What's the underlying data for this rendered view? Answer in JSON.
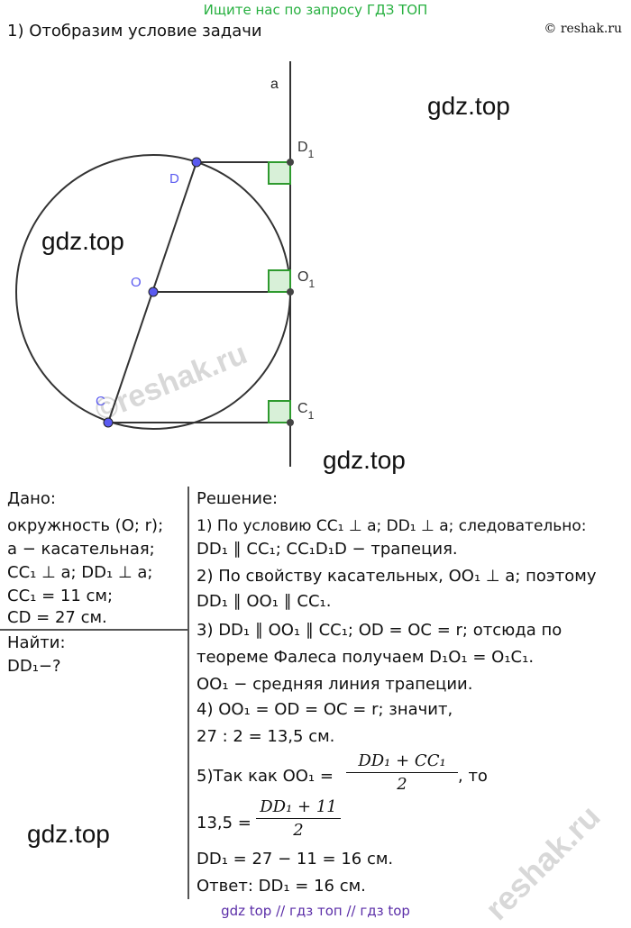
{
  "banner": "Ищите нас по запросу ГДЗ ТОП",
  "heading": "1) Отобразим условие задачи",
  "copyright": "© reshak.ru",
  "watermarks": {
    "gdz_1": "gdz.top",
    "gdz_2": "gdz.top",
    "gdz_3": "gdz.top",
    "gdz_4": "gdz.top",
    "reshak_1": "©reshak.ru",
    "reshak_2": "reshak.ru"
  },
  "figure": {
    "label_a": "a",
    "label_D": "D",
    "label_D1": "D",
    "label_D1_sub": "1",
    "label_O": "O",
    "label_O1": "O",
    "label_O1_sub": "1",
    "label_C": "C",
    "label_C1": "C",
    "label_C1_sub": "1",
    "colors": {
      "line": "#333333",
      "point": "#5a5af0",
      "right_angle": "#2e9a2e",
      "right_angle_fill": "#d8f0d8"
    }
  },
  "given": {
    "title": "Дано:",
    "l1": "окружность (O; r);",
    "l2": "a − касательная;",
    "l3": "CC₁ ⊥ a;  DD₁ ⊥ a;",
    "l4": "CC₁ = 11 см;",
    "l5": "CD = 27 см.",
    "find_title": "Найти:",
    "find": "DD₁−?"
  },
  "solution": {
    "title": "Решение:",
    "l1": "1) По условию CC₁ ⊥ a;  DD₁ ⊥ a; следовательно:",
    "l2": "DD₁ ∥ CC₁;  CC₁D₁D − трапеция.",
    "l3": "2) По свойству касательных, OO₁ ⊥ a; поэтому",
    "l4": "DD₁ ∥ OO₁ ∥ CC₁.",
    "l5": "3) DD₁ ∥ OO₁ ∥ CC₁;   OD = OC = r; отсюда по",
    "l6": "теореме Фалеса  получаем D₁O₁ = O₁C₁.",
    "l7": "OO₁ − средняя линия трапеции.",
    "l8": "4) OO₁ = OD = OC = r;  значит,",
    "l9": "27 : 2 = 13,5 см.",
    "l10_prefix": "5)Так как  OO₁ =",
    "l10_num": "DD₁ + CC₁",
    "l10_den": "2",
    "l10_suffix": ", то",
    "l11_prefix": "13,5 =",
    "l11_num": "DD₁ + 11",
    "l11_den": "2",
    "l12": "DD₁ = 27 − 11 = 16 см.",
    "l13": "Ответ: DD₁ = 16 см."
  },
  "footer": "gdz top  //  гдз топ  //  гдз top"
}
